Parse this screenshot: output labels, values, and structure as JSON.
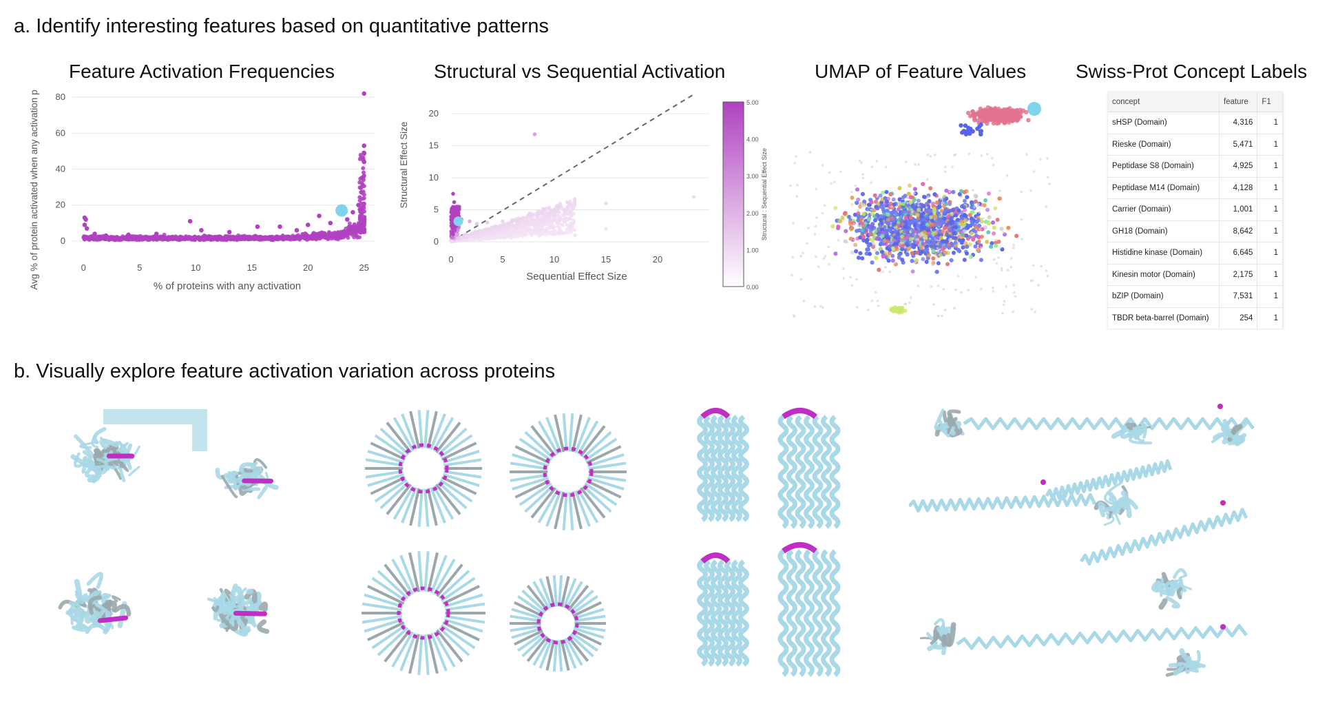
{
  "headings": {
    "a": "a. Identify interesting features based on quantitative patterns",
    "b": "b. Visually explore feature activation variation across proteins"
  },
  "panel_titles": {
    "freq": "Feature Activation Frequencies",
    "struct": "Structural vs Sequential Activation",
    "umap": "UMAP of Feature Values",
    "swiss": "Swiss-Prot Concept Labels"
  },
  "colors": {
    "purple": "#b042c0",
    "highlight": "#7fd3ea",
    "ribbon": "#a9d8e6",
    "ribbon_dark": "#9aa8ad",
    "activation": "#c02fc4"
  },
  "chart_data": [
    {
      "type": "scatter",
      "title": "Feature Activation Frequencies",
      "xlabel": "% of proteins with any activation",
      "ylabel": "Avg % of protein activated when any activation p",
      "xlim": [
        -1,
        26
      ],
      "ylim": [
        -5,
        85
      ],
      "xticks": [
        0,
        5,
        10,
        15,
        20,
        25
      ],
      "yticks": [
        0,
        20,
        40,
        60,
        80
      ],
      "grid": "horizontal",
      "color": "#b042c0",
      "points_note": "dense band near y≈2 across x 0–25, rising sharply near x=25",
      "sample_points": [
        {
          "x": 0.1,
          "y": 13
        },
        {
          "x": 0.2,
          "y": 12
        },
        {
          "x": 0.1,
          "y": 9
        },
        {
          "x": 0.3,
          "y": 7
        },
        {
          "x": 1.0,
          "y": 4
        },
        {
          "x": 2.0,
          "y": 3
        },
        {
          "x": 4.0,
          "y": 3.5
        },
        {
          "x": 6.5,
          "y": 4
        },
        {
          "x": 9.5,
          "y": 11
        },
        {
          "x": 10.5,
          "y": 6
        },
        {
          "x": 13.0,
          "y": 5
        },
        {
          "x": 15.5,
          "y": 8
        },
        {
          "x": 17.5,
          "y": 8
        },
        {
          "x": 19.0,
          "y": 6
        },
        {
          "x": 20.0,
          "y": 9
        },
        {
          "x": 21.0,
          "y": 14
        },
        {
          "x": 22.0,
          "y": 10
        },
        {
          "x": 23.5,
          "y": 12
        },
        {
          "x": 24.0,
          "y": 16
        },
        {
          "x": 24.5,
          "y": 20
        },
        {
          "x": 24.8,
          "y": 27
        },
        {
          "x": 24.9,
          "y": 35
        },
        {
          "x": 25.0,
          "y": 44
        },
        {
          "x": 25.0,
          "y": 49
        },
        {
          "x": 25.0,
          "y": 53
        },
        {
          "x": 25.0,
          "y": 82
        }
      ],
      "highlight": {
        "x": 23.0,
        "y": 17
      }
    },
    {
      "type": "scatter",
      "title": "Structural vs Sequential Activation",
      "xlabel": "Sequential Effect Size",
      "ylabel": "Structural Effect Size",
      "colorbar_label": "Structural : Sequential Effect Size",
      "colorbar_ticks": [
        "0.00",
        "1.00",
        "2.00",
        "3.00",
        "4.00",
        "5.00"
      ],
      "xlim": [
        0,
        25
      ],
      "ylim": [
        0,
        24
      ],
      "xticks": [
        0,
        5,
        10,
        15,
        20
      ],
      "yticks": [
        0,
        5,
        10,
        15,
        20
      ],
      "grid": "horizontal",
      "reference_line": "y = x (dashed)",
      "sample_points": [
        {
          "x": 8.1,
          "y": 16.8
        },
        {
          "x": 0.2,
          "y": 7.5
        },
        {
          "x": 0.3,
          "y": 6.2
        },
        {
          "x": 0.6,
          "y": 4.6
        },
        {
          "x": 1.0,
          "y": 3.5
        },
        {
          "x": 1.8,
          "y": 3.2
        },
        {
          "x": 2.5,
          "y": 2.8
        },
        {
          "x": 3.5,
          "y": 3.0
        },
        {
          "x": 5.0,
          "y": 3.2
        },
        {
          "x": 6.0,
          "y": 2.5
        },
        {
          "x": 7.0,
          "y": 2.0
        },
        {
          "x": 8.0,
          "y": 1.8
        },
        {
          "x": 9.0,
          "y": 1.5
        },
        {
          "x": 10.0,
          "y": 1.2
        },
        {
          "x": 12.0,
          "y": 1.0
        },
        {
          "x": 15.0,
          "y": 6.0
        },
        {
          "x": 15.0,
          "y": 2.0
        },
        {
          "x": 23.5,
          "y": 7.0
        }
      ],
      "highlight": {
        "x": 0.7,
        "y": 3.2
      }
    }
  ],
  "umap": {
    "title": "UMAP of Feature Values",
    "highlight_color": "#7fd3ea",
    "cluster_colors": [
      "#e2738f",
      "#5865e8",
      "#6e7cf0",
      "#8ff08a",
      "#e8776a",
      "#e6a060",
      "#d9c24f",
      "#b46de0",
      "#5ec8b8",
      "#e85fbe",
      "#c9e86a",
      "#f08a5b",
      "#d6d6d6"
    ]
  },
  "table": {
    "columns": [
      "concept",
      "feature",
      "F1"
    ],
    "rows": [
      [
        "sHSP (Domain)",
        "4,316",
        "1"
      ],
      [
        "Rieske (Domain)",
        "5,471",
        "1"
      ],
      [
        "Peptidase S8 (Domain)",
        "4,925",
        "1"
      ],
      [
        "Peptidase M14 (Domain)",
        "4,128",
        "1"
      ],
      [
        "Carrier (Domain)",
        "1,001",
        "1"
      ],
      [
        "GH18 (Domain)",
        "8,642",
        "1"
      ],
      [
        "Histidine kinase (Domain)",
        "6,645",
        "1"
      ],
      [
        "Kinesin motor (Domain)",
        "2,175",
        "1"
      ],
      [
        "bZIP (Domain)",
        "7,531",
        "1"
      ],
      [
        "TBDR beta-barrel (Domain)",
        "254",
        "1"
      ]
    ]
  }
}
